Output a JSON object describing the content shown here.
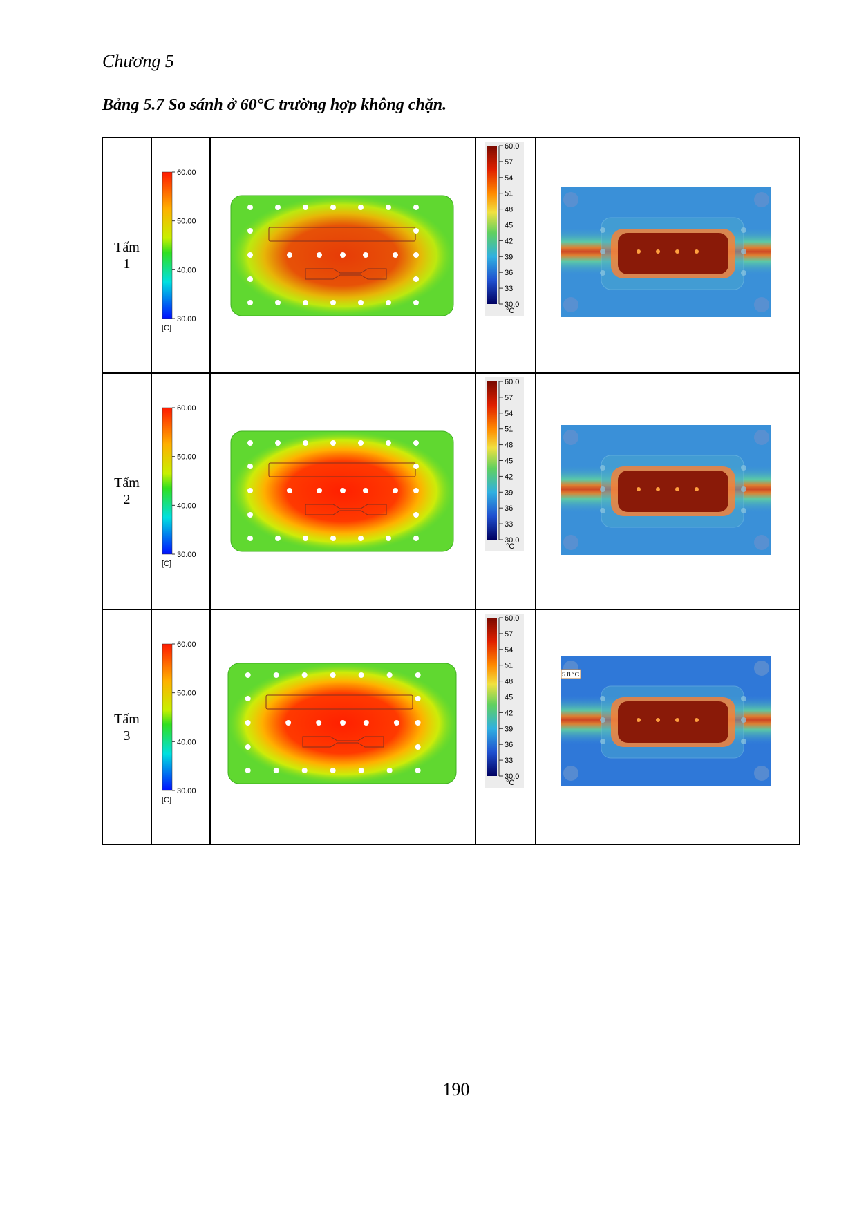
{
  "header": {
    "chapter": "Chương 5"
  },
  "table": {
    "caption": "Bảng 5.7 So sánh ở 60°C trường hợp không chặn.",
    "sim_scale": {
      "labels": [
        "60.00",
        "50.00",
        "40.00",
        "30.00"
      ],
      "unit": "[C]"
    },
    "ir_scale": {
      "labels": [
        "60.0",
        "57",
        "54",
        "51",
        "48",
        "45",
        "42",
        "39",
        "36",
        "33",
        "30.0"
      ],
      "unit": "°C"
    },
    "rows": [
      {
        "label": "Tấm 1"
      },
      {
        "label": "Tấm 2"
      },
      {
        "label": "Tấm 3",
        "annotation": "5.8 °C"
      }
    ]
  },
  "footer": {
    "page_number": "190"
  }
}
